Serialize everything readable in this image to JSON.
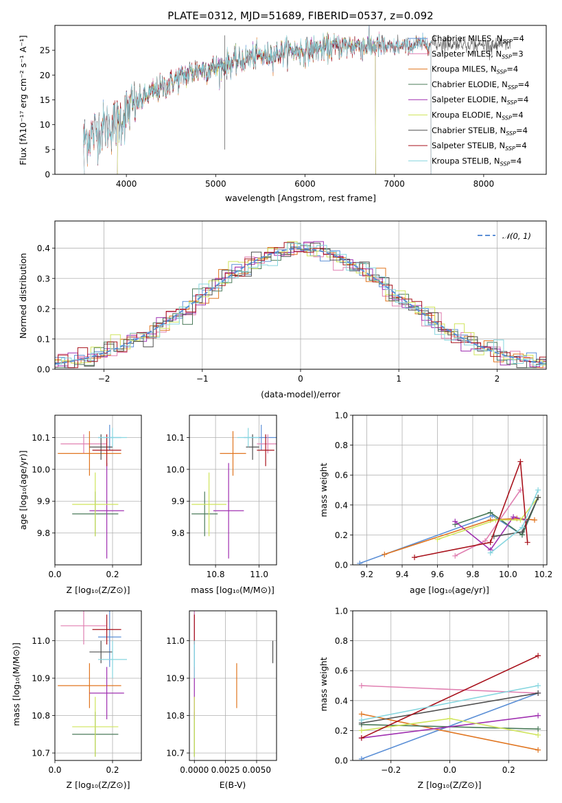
{
  "colors": {
    "Chabrier MILES": "#5b8fd6",
    "Salpeter MILES": "#e07fb1",
    "Kroupa MILES": "#e0741e",
    "Chabrier ELODIE": "#4a7a59",
    "Salpeter ELODIE": "#9f2fb0",
    "Kroupa ELODIE": "#cfe45a",
    "Chabrier STELIB": "#4f4f4f",
    "Salpeter STELIB": "#a8111b",
    "Kroupa STELIB": "#86d6df"
  },
  "chart_data": [
    {
      "id": "spectrum",
      "type": "line",
      "title": "PLATE=0312, MJD=51689, FIBERID=0537, z=0.092",
      "xlabel": "wavelength [Angstrom, rest frame]",
      "ylabel": "Flux [fλ10⁻¹⁷ erg cm⁻² s⁻¹ A⁻¹]",
      "xlim": [
        3200,
        8700
      ],
      "ylim": [
        0,
        30
      ],
      "xticks": [
        4000,
        5000,
        6000,
        7000,
        8000
      ],
      "yticks": [
        0,
        5,
        10,
        15,
        20,
        25
      ],
      "continuum": [
        [
          3520,
          7
        ],
        [
          3700,
          9
        ],
        [
          3900,
          10.5
        ],
        [
          4050,
          13.5
        ],
        [
          4200,
          15.5
        ],
        [
          4400,
          17.5
        ],
        [
          4600,
          19.5
        ],
        [
          4800,
          21
        ],
        [
          5000,
          21.5
        ],
        [
          5200,
          22.5
        ],
        [
          5400,
          23.5
        ],
        [
          5600,
          24
        ],
        [
          5800,
          24.8
        ],
        [
          6000,
          25
        ],
        [
          6200,
          25.3
        ],
        [
          6400,
          25.8
        ],
        [
          6600,
          26
        ],
        [
          6800,
          25.8
        ],
        [
          7000,
          25.5
        ],
        [
          7200,
          26
        ],
        [
          7400,
          26.5
        ],
        [
          7600,
          26.3
        ],
        [
          7800,
          26.2
        ],
        [
          8000,
          26
        ],
        [
          8300,
          26
        ]
      ],
      "legend": {
        "placement": "upper-right",
        "entries": [
          {
            "pre": "Chabrier MILES, N",
            "sub": "SSP",
            "post": "=4"
          },
          {
            "pre": "Salpeter MILES, N",
            "sub": "SSP",
            "post": "=3"
          },
          {
            "pre": "Kroupa MILES, N",
            "sub": "SSP",
            "post": "=4"
          },
          {
            "pre": "Chabrier ELODIE, N",
            "sub": "SSP",
            "post": "=4"
          },
          {
            "pre": "Salpeter ELODIE, N",
            "sub": "SSP",
            "post": "=4"
          },
          {
            "pre": "Kroupa ELODIE, N",
            "sub": "SSP",
            "post": "=4"
          },
          {
            "pre": "Chabrier STELIB, N",
            "sub": "SSP",
            "post": "=4"
          },
          {
            "pre": "Salpeter STELIB, N",
            "sub": "SSP",
            "post": "=4"
          },
          {
            "pre": "Kroupa STELIB, N",
            "sub": "SSP",
            "post": "=4"
          }
        ]
      }
    },
    {
      "id": "residuals",
      "type": "histogram",
      "xlabel": "(data-model)/error",
      "ylabel": "Normed distribution",
      "xlim": [
        -2.5,
        2.5
      ],
      "ylim": [
        0,
        0.49
      ],
      "xticks": [
        -2,
        -1,
        0,
        1,
        2
      ],
      "yticks": [
        0.0,
        0.1,
        0.2,
        0.3,
        0.4
      ],
      "grid": true,
      "bin_width": 0.1,
      "legend": {
        "placement": "upper-right",
        "label": "𝒩(0, 1)"
      },
      "reference_curve": "normal(0,1)"
    },
    {
      "id": "age-vs-Z",
      "type": "errorbar",
      "xlabel": "Z [log₁₀(Z/Z⊙)]",
      "ylabel": "age  [log₁₀(age/yr)]",
      "xlim": [
        0.0,
        0.3
      ],
      "ylim": [
        9.7,
        10.17
      ],
      "xticks": [
        0.0,
        0.2
      ],
      "yticks": [
        9.8,
        9.9,
        10.0,
        10.1
      ],
      "grid": true
    },
    {
      "id": "age-vs-mass",
      "type": "errorbar",
      "xlabel": "mass [log₁₀(M/M⊙)]",
      "xlim": [
        10.68,
        11.08
      ],
      "ylim": [
        9.7,
        10.17
      ],
      "xticks": [
        10.8,
        11.0
      ],
      "yticks": [
        9.8,
        9.9,
        10.0,
        10.1
      ],
      "grid": true
    },
    {
      "id": "weight-vs-age",
      "type": "line",
      "xlabel": "age  [log₁₀(age/yr)]",
      "ylabel": "mass weight",
      "xlim": [
        9.12,
        10.22
      ],
      "ylim": [
        0.0,
        1.0
      ],
      "xticks": [
        9.2,
        9.4,
        9.6,
        9.8,
        10.0,
        10.2
      ],
      "yticks": [
        0.0,
        0.2,
        0.4,
        0.6,
        0.8,
        1.0
      ],
      "grid": true,
      "series": [
        {
          "model": "Chabrier MILES",
          "x": [
            9.16,
            9.91,
            10.08,
            10.17
          ],
          "y": [
            0.01,
            0.33,
            0.2,
            0.45
          ]
        },
        {
          "model": "Salpeter MILES",
          "x": [
            9.7,
            9.87,
            10.07
          ],
          "y": [
            0.06,
            0.16,
            0.5
          ]
        },
        {
          "model": "Kroupa MILES",
          "x": [
            9.3,
            9.9,
            10.05,
            10.15
          ],
          "y": [
            0.07,
            0.3,
            0.31,
            0.3
          ]
        },
        {
          "model": "Chabrier ELODIE",
          "x": [
            9.7,
            9.9,
            10.08,
            10.17
          ],
          "y": [
            0.27,
            0.35,
            0.2,
            0.45
          ]
        },
        {
          "model": "Salpeter ELODIE",
          "x": [
            9.7,
            9.9,
            10.03,
            10.1
          ],
          "y": [
            0.29,
            0.1,
            0.32,
            0.3
          ]
        },
        {
          "model": "Kroupa ELODIE",
          "x": [
            9.6,
            9.93,
            10.07,
            10.17
          ],
          "y": [
            0.17,
            0.3,
            0.3,
            0.45
          ]
        },
        {
          "model": "Chabrier STELIB",
          "x": [
            9.92,
            10.08,
            10.17
          ],
          "y": [
            0.19,
            0.22,
            0.45
          ]
        },
        {
          "model": "Salpeter STELIB",
          "x": [
            9.47,
            9.9,
            10.07,
            10.11
          ],
          "y": [
            0.05,
            0.15,
            0.69,
            0.15
          ]
        },
        {
          "model": "Kroupa STELIB",
          "x": [
            9.9,
            10.08,
            10.17
          ],
          "y": [
            0.08,
            0.25,
            0.5
          ]
        }
      ]
    },
    {
      "id": "mass-vs-Z",
      "type": "errorbar",
      "xlabel": "Z [log₁₀(Z/Z⊙)]",
      "ylabel": "mass [log₁₀(M/M⊙)]",
      "xlim": [
        0.0,
        0.3
      ],
      "ylim": [
        10.68,
        11.08
      ],
      "xticks": [
        0.0,
        0.2
      ],
      "yticks": [
        10.7,
        10.8,
        10.9,
        11.0
      ],
      "grid": true
    },
    {
      "id": "mass-vs-EBV",
      "type": "errorbar",
      "xlabel": "E(B-V)",
      "xlim": [
        -0.0004,
        0.0066
      ],
      "ylim": [
        10.68,
        11.08
      ],
      "xticks": [
        "0.0000",
        "0.0025",
        "0.0050"
      ],
      "yticks": [
        10.7,
        10.8,
        10.9,
        11.0
      ],
      "grid": true
    },
    {
      "id": "weight-vs-Z",
      "type": "line",
      "xlabel": "Z [log₁₀(Z/Z⊙)]",
      "ylabel": "mass weight",
      "xlim": [
        -0.33,
        0.33
      ],
      "ylim": [
        0.0,
        1.0
      ],
      "xticks": [
        -0.2,
        0.0,
        0.2
      ],
      "yticks": [
        0.0,
        0.2,
        0.4,
        0.6,
        0.8,
        1.0
      ],
      "grid": true,
      "series": [
        {
          "model": "Chabrier MILES",
          "x": [
            -0.3,
            0.3
          ],
          "y": [
            0.01,
            0.45
          ]
        },
        {
          "model": "Salpeter MILES",
          "x": [
            -0.3,
            0.3
          ],
          "y": [
            0.5,
            0.45
          ]
        },
        {
          "model": "Kroupa MILES",
          "x": [
            -0.3,
            0.3
          ],
          "y": [
            0.31,
            0.07
          ]
        },
        {
          "model": "Chabrier ELODIE",
          "x": [
            -0.3,
            0.3
          ],
          "y": [
            0.24,
            0.21
          ]
        },
        {
          "model": "Salpeter ELODIE",
          "x": [
            -0.3,
            0.3
          ],
          "y": [
            0.15,
            0.3
          ]
        },
        {
          "model": "Kroupa ELODIE",
          "x": [
            -0.3,
            0.0,
            0.3
          ],
          "y": [
            0.2,
            0.28,
            0.17
          ]
        },
        {
          "model": "Chabrier STELIB",
          "x": [
            -0.3,
            0.3
          ],
          "y": [
            0.25,
            0.45
          ]
        },
        {
          "model": "Salpeter STELIB",
          "x": [
            -0.3,
            0.3
          ],
          "y": [
            0.15,
            0.7
          ]
        },
        {
          "model": "Kroupa STELIB",
          "x": [
            -0.3,
            0.3
          ],
          "y": [
            0.27,
            0.5
          ]
        }
      ]
    }
  ],
  "estimates": [
    {
      "model": "Chabrier MILES",
      "Z": 0.19,
      "Z_err": 0.04,
      "age": 10.1,
      "age_err": 0.04,
      "mass": 11.01,
      "mass_err": 0.08,
      "ebv": 0.0,
      "ebv_err": 0.0
    },
    {
      "model": "Salpeter MILES",
      "Z": 0.1,
      "Z_err": 0.08,
      "age": 10.08,
      "age_err": 0.03,
      "mass": 11.04,
      "mass_err": 0.05,
      "ebv": 0.0,
      "ebv_err": 0.0
    },
    {
      "model": "Kroupa MILES",
      "Z": 0.12,
      "Z_err": 0.11,
      "age": 10.05,
      "age_err": 0.07,
      "mass": 10.88,
      "mass_err": 0.06,
      "ebv": 0.0034,
      "ebv_err": 0.0
    },
    {
      "model": "Chabrier ELODIE",
      "Z": 0.14,
      "Z_err": 0.08,
      "age": 9.86,
      "age_err": 0.07,
      "mass": 10.75,
      "mass_err": 0.06,
      "ebv": 0.0,
      "ebv_err": 0.0
    },
    {
      "model": "Salpeter ELODIE",
      "Z": 0.18,
      "Z_err": 0.06,
      "age": 9.87,
      "age_err": 0.15,
      "mass": 10.86,
      "mass_err": 0.07,
      "ebv": 0.0,
      "ebv_err": 0.0
    },
    {
      "model": "Kroupa ELODIE",
      "Z": 0.14,
      "Z_err": 0.08,
      "age": 9.89,
      "age_err": 0.1,
      "mass": 10.77,
      "mass_err": 0.08,
      "ebv": 0.0,
      "ebv_err": 0.0
    },
    {
      "model": "Chabrier STELIB",
      "Z": 0.16,
      "Z_err": 0.04,
      "age": 10.07,
      "age_err": 0.04,
      "mass": 10.97,
      "mass_err": 0.03,
      "ebv": 0.0063,
      "ebv_err": 0.0
    },
    {
      "model": "Salpeter STELIB",
      "Z": 0.18,
      "Z_err": 0.05,
      "age": 10.06,
      "age_err": 0.05,
      "mass": 11.03,
      "mass_err": 0.04,
      "ebv": 0.0,
      "ebv_err": 0.0
    },
    {
      "model": "Kroupa STELIB",
      "Z": 0.2,
      "Z_err": 0.05,
      "age": 10.1,
      "age_err": 0.03,
      "mass": 10.95,
      "mass_err": 0.05,
      "ebv": 0.0,
      "ebv_err": 0.0
    }
  ]
}
